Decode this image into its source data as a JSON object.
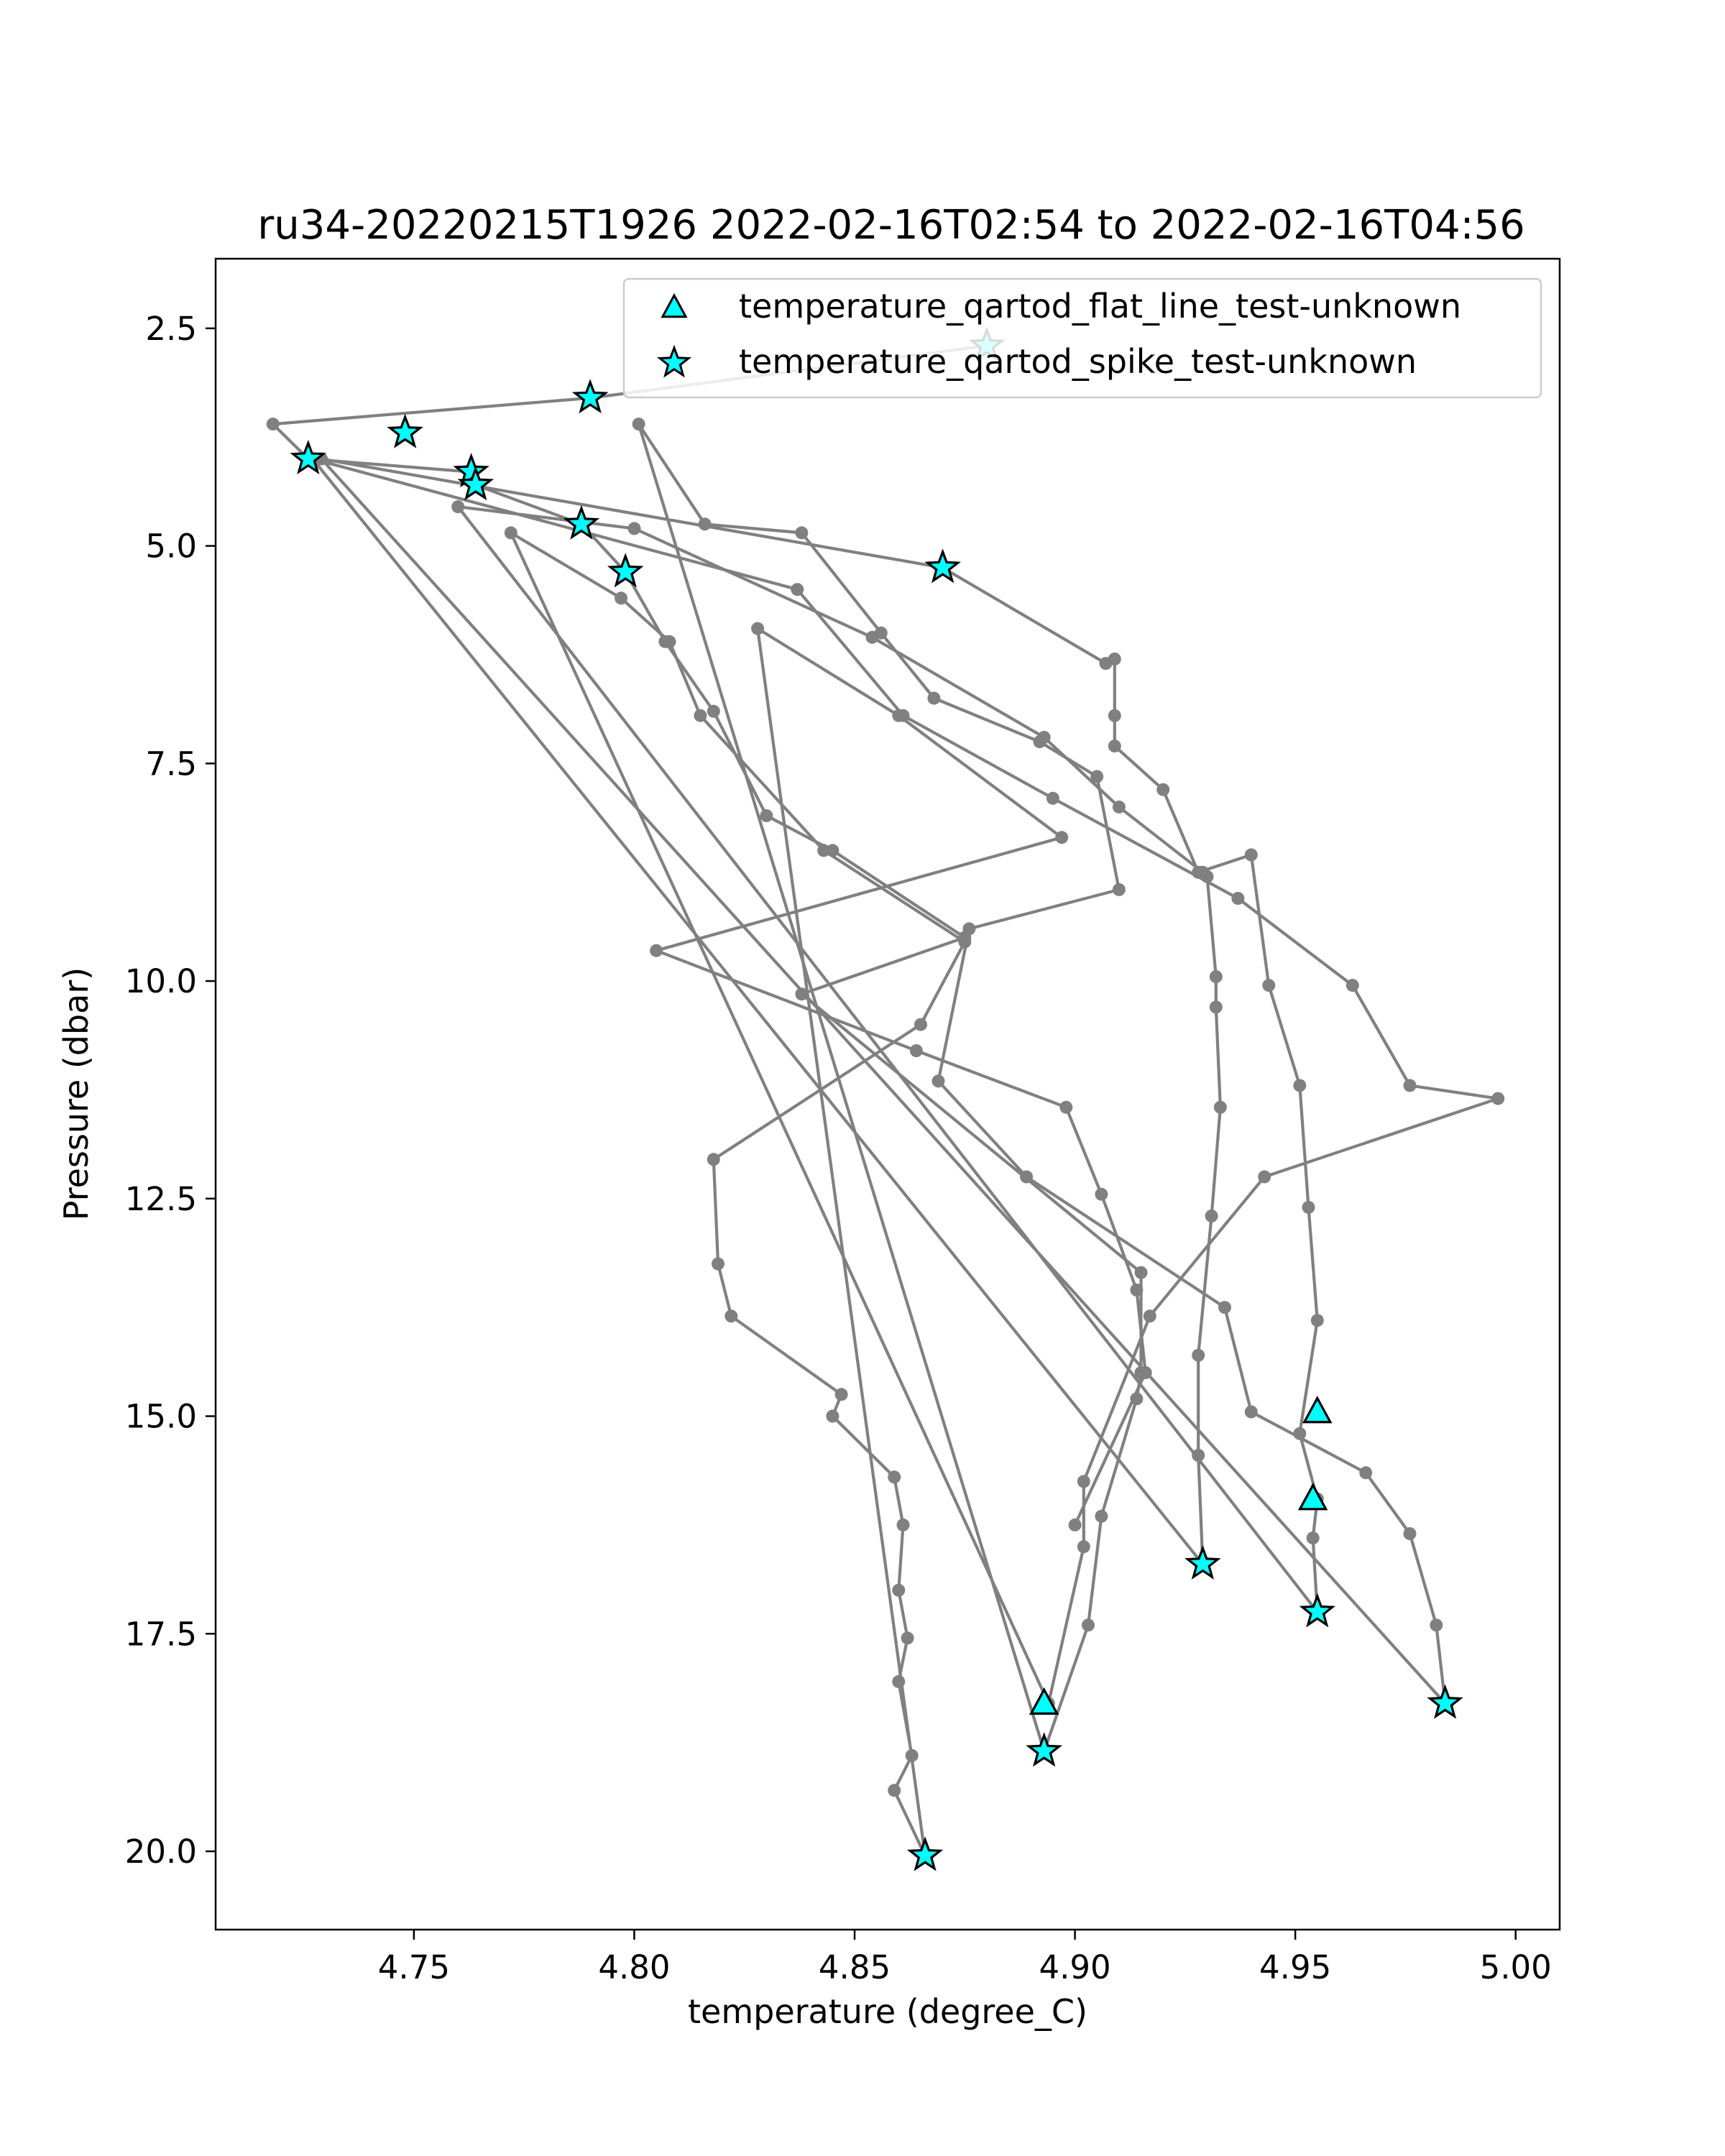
{
  "chart_data": {
    "type": "scatter",
    "title": "ru34-20220215T1926 2022-02-16T02:54 to 2022-02-16T04:56",
    "xlabel": "temperature (degree_C)",
    "ylabel": "Pressure (dbar)",
    "xlim": [
      4.705,
      5.01
    ],
    "ylim": [
      20.9,
      1.7
    ],
    "y_inverted": true,
    "xticks": [
      "4.75",
      "4.80",
      "4.85",
      "4.90",
      "4.95",
      "5.00"
    ],
    "yticks": [
      "2.5",
      "5.0",
      "7.5",
      "10.0",
      "12.5",
      "15.0",
      "17.5",
      "20.0"
    ],
    "grid": false,
    "legend_position": "top-right",
    "colors": {
      "profile": "#808080",
      "marker_fill": "#00ffff",
      "marker_edge": "#000000"
    },
    "profile_line_points": [
      [
        4.88,
        2.7
      ],
      [
        4.79,
        3.3
      ],
      [
        4.718,
        3.6
      ],
      [
        4.726,
        4.0
      ],
      [
        4.763,
        4.15
      ],
      [
        4.764,
        4.3
      ],
      [
        4.788,
        4.75
      ],
      [
        4.798,
        5.3
      ],
      [
        4.807,
        6.1
      ],
      [
        4.818,
        6.9
      ],
      [
        4.83,
        8.1
      ],
      [
        4.845,
        8.5
      ],
      [
        4.875,
        9.5
      ],
      [
        4.838,
        10.15
      ],
      [
        4.915,
        13.35
      ],
      [
        4.915,
        14.5
      ],
      [
        4.914,
        14.8
      ],
      [
        4.906,
        16.15
      ],
      [
        4.903,
        17.4
      ],
      [
        4.893,
        18.85
      ],
      [
        4.801,
        3.6
      ],
      [
        4.816,
        4.75
      ],
      [
        4.838,
        4.85
      ],
      [
        4.856,
        6.0
      ],
      [
        4.868,
        6.75
      ],
      [
        4.892,
        7.25
      ],
      [
        4.905,
        7.65
      ],
      [
        4.91,
        8.95
      ],
      [
        4.876,
        9.4
      ],
      [
        4.869,
        11.15
      ],
      [
        4.889,
        12.25
      ],
      [
        4.934,
        13.75
      ],
      [
        4.94,
        14.95
      ],
      [
        4.966,
        15.65
      ],
      [
        4.976,
        16.35
      ],
      [
        4.982,
        17.4
      ],
      [
        4.984,
        18.3
      ],
      [
        4.729,
        4.0
      ],
      [
        4.87,
        5.25
      ],
      [
        4.907,
        6.35
      ],
      [
        4.909,
        6.3
      ],
      [
        4.909,
        6.95
      ],
      [
        4.909,
        7.3
      ],
      [
        4.92,
        7.8
      ],
      [
        4.928,
        8.75
      ],
      [
        4.94,
        8.55
      ],
      [
        4.944,
        10.05
      ],
      [
        4.951,
        11.2
      ],
      [
        4.953,
        12.6
      ],
      [
        4.955,
        13.9
      ],
      [
        4.951,
        15.2
      ],
      [
        4.955,
        15.95
      ],
      [
        4.954,
        16.4
      ],
      [
        4.955,
        17.25
      ],
      [
        4.76,
        4.55
      ],
      [
        4.8,
        4.8
      ],
      [
        4.854,
        6.05
      ],
      [
        4.893,
        7.2
      ],
      [
        4.91,
        8.0
      ],
      [
        4.929,
        8.75
      ],
      [
        4.93,
        8.8
      ],
      [
        4.932,
        9.95
      ],
      [
        4.932,
        10.3
      ],
      [
        4.933,
        11.45
      ],
      [
        4.931,
        12.7
      ],
      [
        4.928,
        14.3
      ],
      [
        4.928,
        15.45
      ],
      [
        4.929,
        16.7
      ],
      [
        4.727,
        4.0
      ],
      [
        4.837,
        5.5
      ],
      [
        4.861,
        6.95
      ],
      [
        4.895,
        7.9
      ],
      [
        4.937,
        9.05
      ],
      [
        4.963,
        10.05
      ],
      [
        4.976,
        11.2
      ],
      [
        4.996,
        11.35
      ],
      [
        4.943,
        12.25
      ],
      [
        4.917,
        13.85
      ],
      [
        4.902,
        15.75
      ],
      [
        4.902,
        16.5
      ],
      [
        4.894,
        18.3
      ],
      [
        4.772,
        4.85
      ],
      [
        4.797,
        5.6
      ],
      [
        4.808,
        6.1
      ],
      [
        4.815,
        6.95
      ],
      [
        4.843,
        8.5
      ],
      [
        4.875,
        9.55
      ],
      [
        4.865,
        10.5
      ],
      [
        4.818,
        12.05
      ],
      [
        4.819,
        13.25
      ],
      [
        4.822,
        13.85
      ],
      [
        4.847,
        14.75
      ],
      [
        4.845,
        15.0
      ],
      [
        4.859,
        15.7
      ],
      [
        4.861,
        16.25
      ],
      [
        4.86,
        17.0
      ],
      [
        4.862,
        17.55
      ],
      [
        4.86,
        18.05
      ],
      [
        4.863,
        18.9
      ],
      [
        4.859,
        19.3
      ],
      [
        4.866,
        20.05
      ],
      [
        4.828,
        5.95
      ],
      [
        4.86,
        6.95
      ],
      [
        4.897,
        8.35
      ],
      [
        4.805,
        9.65
      ],
      [
        4.864,
        10.8
      ],
      [
        4.898,
        11.45
      ],
      [
        4.906,
        12.45
      ],
      [
        4.914,
        13.55
      ],
      [
        4.916,
        14.5
      ],
      [
        4.9,
        16.25
      ]
    ],
    "series": [
      {
        "name": "temperature_qartod_flat_line_test-unknown",
        "marker": "triangle",
        "points": [
          [
            4.955,
            14.95
          ],
          [
            4.954,
            15.95
          ],
          [
            4.893,
            18.3
          ]
        ]
      },
      {
        "name": "temperature_qartod_spike_test-unknown",
        "marker": "star",
        "points": [
          [
            4.88,
            2.7
          ],
          [
            4.79,
            3.3
          ],
          [
            4.748,
            3.7
          ],
          [
            4.726,
            4.0
          ],
          [
            4.763,
            4.15
          ],
          [
            4.764,
            4.3
          ],
          [
            4.788,
            4.75
          ],
          [
            4.798,
            5.3
          ],
          [
            4.87,
            5.25
          ],
          [
            4.929,
            16.7
          ],
          [
            4.955,
            17.25
          ],
          [
            4.984,
            18.3
          ],
          [
            4.893,
            18.85
          ],
          [
            4.866,
            20.05
          ]
        ]
      }
    ]
  }
}
